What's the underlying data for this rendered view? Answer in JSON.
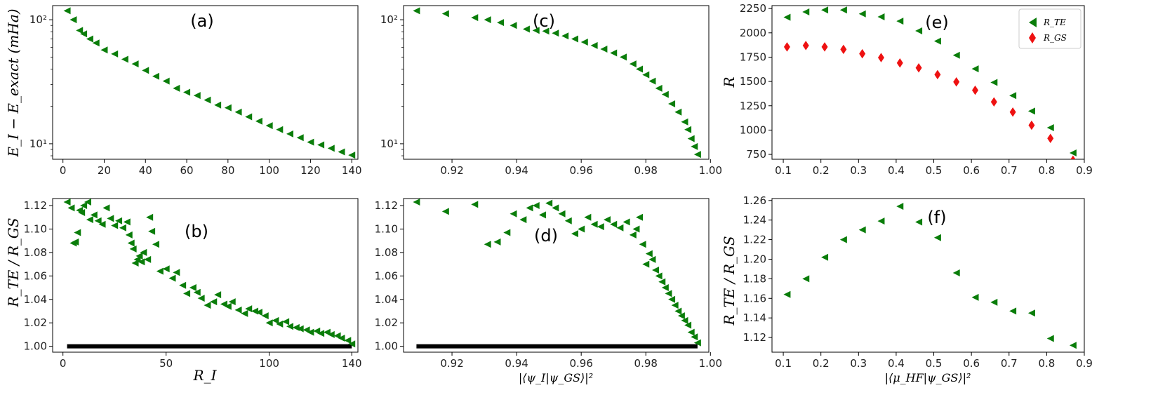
{
  "colors": {
    "green": "#0a7d0a",
    "red": "#ee1111",
    "black": "#000000"
  },
  "chart_data": [
    {
      "id": "a",
      "type": "scatter",
      "marker": "triangle-left",
      "panel_label": "(a)",
      "title": "",
      "xlabel": "",
      "ylabel": "E_I − E_exact (mHa)",
      "xscale": "linear",
      "yscale": "log",
      "xlim": [
        -5,
        143
      ],
      "ylim": [
        7.5,
        130
      ],
      "xticks": [
        0,
        20,
        40,
        60,
        80,
        100,
        120,
        140
      ],
      "xtick_labels": [
        "0",
        "20",
        "40",
        "60",
        "80",
        "100",
        "120",
        "140"
      ],
      "yticks": [
        10,
        100
      ],
      "ytick_labels": [
        "10¹",
        "10²"
      ],
      "series": [
        {
          "name": "E_I",
          "color": "#0a7d0a",
          "x": [
            2,
            5,
            8,
            10,
            13,
            16,
            20,
            25,
            30,
            35,
            40,
            45,
            50,
            55,
            60,
            65,
            70,
            75,
            80,
            85,
            90,
            95,
            100,
            105,
            110,
            115,
            120,
            125,
            130,
            135,
            140
          ],
          "y": [
            118,
            100,
            82,
            77,
            70,
            65,
            57,
            53,
            48,
            44,
            39,
            35,
            32,
            28,
            26,
            24.5,
            22.5,
            20.5,
            19.5,
            18,
            16.5,
            15.2,
            14,
            13,
            12,
            11.2,
            10.3,
            9.8,
            9.2,
            8.6,
            8.1
          ]
        }
      ]
    },
    {
      "id": "b",
      "type": "scatter",
      "marker": "triangle-left",
      "panel_label": "(b)",
      "title": "",
      "xlabel": "R_I",
      "ylabel": "R_TE / R_GS",
      "xscale": "linear",
      "yscale": "linear",
      "xlim": [
        -5,
        143
      ],
      "ylim": [
        0.995,
        1.126
      ],
      "xticks": [
        0,
        50,
        100,
        140
      ],
      "xtick_labels": [
        "0",
        "50",
        "100",
        "140"
      ],
      "yticks": [
        1.0,
        1.02,
        1.04,
        1.06,
        1.08,
        1.1,
        1.12
      ],
      "ytick_labels": [
        "1.00",
        "1.02",
        "1.04",
        "1.06",
        "1.08",
        "1.10",
        "1.12"
      ],
      "reference_line": {
        "y": 1.0,
        "x_from": 2,
        "x_to": 140,
        "color": "#000000"
      },
      "series": [
        {
          "name": "ratio",
          "color": "#0a7d0a",
          "x": [
            2,
            4,
            5,
            6,
            7,
            8,
            9,
            10,
            12,
            13,
            15,
            17,
            19,
            21,
            23,
            25,
            27,
            29,
            31,
            32,
            33,
            34,
            35,
            36,
            37,
            38,
            39,
            41,
            42,
            43,
            45,
            47,
            50,
            53,
            55,
            58,
            60,
            63,
            65,
            67,
            70,
            73,
            75,
            78,
            80,
            82,
            85,
            88,
            90,
            93,
            95,
            98,
            100,
            103,
            105,
            108,
            110,
            113,
            115,
            118,
            120,
            123,
            125,
            128,
            130,
            133,
            135,
            138,
            140
          ],
          "y": [
            1.123,
            1.118,
            1.088,
            1.089,
            1.097,
            1.116,
            1.114,
            1.12,
            1.123,
            1.108,
            1.112,
            1.107,
            1.104,
            1.118,
            1.109,
            1.103,
            1.107,
            1.101,
            1.106,
            1.095,
            1.088,
            1.083,
            1.071,
            1.074,
            1.077,
            1.072,
            1.08,
            1.074,
            1.11,
            1.098,
            1.087,
            1.064,
            1.066,
            1.058,
            1.063,
            1.052,
            1.045,
            1.05,
            1.046,
            1.041,
            1.035,
            1.038,
            1.044,
            1.036,
            1.034,
            1.038,
            1.031,
            1.028,
            1.032,
            1.03,
            1.029,
            1.026,
            1.02,
            1.022,
            1.019,
            1.021,
            1.017,
            1.016,
            1.015,
            1.014,
            1.012,
            1.013,
            1.011,
            1.012,
            1.01,
            1.009,
            1.007,
            1.005,
            1.002
          ]
        }
      ]
    },
    {
      "id": "c",
      "type": "scatter",
      "marker": "triangle-left",
      "panel_label": "(c)",
      "title": "",
      "xlabel": "",
      "ylabel": "",
      "xscale": "linear",
      "yscale": "log",
      "xlim": [
        0.905,
        0.9995
      ],
      "ylim": [
        7.5,
        130
      ],
      "xticks": [
        0.92,
        0.94,
        0.96,
        0.98,
        1.0
      ],
      "xtick_labels": [
        "0.92",
        "0.94",
        "0.96",
        "0.98",
        "1.00"
      ],
      "yticks": [
        10,
        100
      ],
      "ytick_labels": [
        "10¹",
        "10²"
      ],
      "series": [
        {
          "name": "E_I",
          "color": "#0a7d0a",
          "x": [
            0.909,
            0.918,
            0.927,
            0.931,
            0.935,
            0.939,
            0.943,
            0.946,
            0.949,
            0.952,
            0.955,
            0.958,
            0.961,
            0.964,
            0.967,
            0.97,
            0.973,
            0.976,
            0.978,
            0.98,
            0.982,
            0.984,
            0.986,
            0.988,
            0.99,
            0.992,
            0.993,
            0.994,
            0.995,
            0.996
          ],
          "y": [
            118,
            112,
            104,
            100,
            95,
            90,
            84,
            82,
            81,
            78,
            74,
            70,
            66,
            62,
            58,
            54,
            50,
            44,
            40,
            36,
            32,
            28,
            25,
            21,
            18,
            15,
            13,
            11,
            9.5,
            8.2
          ]
        }
      ]
    },
    {
      "id": "d",
      "type": "scatter",
      "marker": "triangle-left",
      "panel_label": "(d)",
      "title": "",
      "xlabel": "|⟨ψ_I|ψ_GS⟩|²",
      "ylabel": "",
      "xscale": "linear",
      "yscale": "linear",
      "xlim": [
        0.905,
        0.9995
      ],
      "ylim": [
        0.995,
        1.126
      ],
      "xticks": [
        0.92,
        0.94,
        0.96,
        0.98,
        1.0
      ],
      "xtick_labels": [
        "0.92",
        "0.94",
        "0.96",
        "0.98",
        "1.00"
      ],
      "yticks": [
        1.0,
        1.02,
        1.04,
        1.06,
        1.08,
        1.1,
        1.12
      ],
      "ytick_labels": [
        "1.00",
        "1.02",
        "1.04",
        "1.06",
        "1.08",
        "1.10",
        "1.12"
      ],
      "reference_line": {
        "y": 1.0,
        "x_from": 0.909,
        "x_to": 0.996,
        "color": "#000000"
      },
      "series": [
        {
          "name": "ratio",
          "color": "#0a7d0a",
          "x": [
            0.909,
            0.918,
            0.927,
            0.931,
            0.934,
            0.937,
            0.939,
            0.942,
            0.944,
            0.946,
            0.948,
            0.95,
            0.952,
            0.954,
            0.956,
            0.958,
            0.96,
            0.962,
            0.964,
            0.966,
            0.968,
            0.97,
            0.972,
            0.974,
            0.976,
            0.977,
            0.978,
            0.979,
            0.98,
            0.981,
            0.982,
            0.983,
            0.984,
            0.985,
            0.986,
            0.987,
            0.988,
            0.989,
            0.99,
            0.991,
            0.992,
            0.993,
            0.994,
            0.995,
            0.996
          ],
          "y": [
            1.123,
            1.115,
            1.121,
            1.087,
            1.089,
            1.097,
            1.113,
            1.108,
            1.118,
            1.12,
            1.112,
            1.122,
            1.118,
            1.113,
            1.107,
            1.096,
            1.1,
            1.11,
            1.104,
            1.102,
            1.108,
            1.104,
            1.101,
            1.106,
            1.095,
            1.1,
            1.11,
            1.087,
            1.07,
            1.079,
            1.074,
            1.065,
            1.06,
            1.055,
            1.05,
            1.045,
            1.04,
            1.035,
            1.03,
            1.026,
            1.022,
            1.018,
            1.012,
            1.008,
            1.003
          ]
        }
      ]
    },
    {
      "id": "e",
      "type": "scatter",
      "panel_label": "(e)",
      "title": "",
      "xlabel": "",
      "ylabel": "R",
      "xscale": "linear",
      "yscale": "linear",
      "xlim": [
        0.07,
        0.9
      ],
      "ylim": [
        700,
        2280
      ],
      "xticks": [
        0.1,
        0.2,
        0.3,
        0.4,
        0.5,
        0.6,
        0.7,
        0.8,
        0.9
      ],
      "xtick_labels": [
        "0.1",
        "0.2",
        "0.3",
        "0.4",
        "0.5",
        "0.6",
        "0.7",
        "0.8",
        "0.9"
      ],
      "yticks": [
        750,
        1000,
        1250,
        1500,
        1750,
        2000,
        2250
      ],
      "ytick_labels": [
        "750",
        "1000",
        "1250",
        "1500",
        "1750",
        "2000",
        "2250"
      ],
      "legend": {
        "placement": "top-right",
        "entries": [
          "R_TE",
          "R_GS"
        ]
      },
      "series": [
        {
          "name": "R_TE",
          "marker": "triangle-left",
          "color": "#0a7d0a",
          "x": [
            0.11,
            0.16,
            0.21,
            0.26,
            0.31,
            0.36,
            0.41,
            0.46,
            0.51,
            0.56,
            0.61,
            0.66,
            0.71,
            0.76,
            0.81,
            0.87
          ],
          "y": [
            2160,
            2215,
            2235,
            2235,
            2195,
            2165,
            2120,
            2020,
            1915,
            1770,
            1630,
            1490,
            1355,
            1195,
            1025,
            765
          ]
        },
        {
          "name": "R_GS",
          "marker": "diamond",
          "color": "#ee1111",
          "x": [
            0.11,
            0.16,
            0.21,
            0.26,
            0.31,
            0.36,
            0.41,
            0.46,
            0.51,
            0.56,
            0.61,
            0.66,
            0.71,
            0.76,
            0.81,
            0.87
          ],
          "y": [
            1855,
            1870,
            1855,
            1830,
            1785,
            1745,
            1690,
            1640,
            1570,
            1495,
            1410,
            1290,
            1185,
            1050,
            915,
            690
          ]
        }
      ]
    },
    {
      "id": "f",
      "type": "scatter",
      "marker": "triangle-left",
      "panel_label": "(f)",
      "title": "",
      "xlabel": "|⟨μ_HF|ψ_GS⟩|²",
      "ylabel": "R_TE / R_GS",
      "xscale": "linear",
      "yscale": "linear",
      "xlim": [
        0.07,
        0.9
      ],
      "ylim": [
        1.105,
        1.262
      ],
      "xticks": [
        0.1,
        0.2,
        0.3,
        0.4,
        0.5,
        0.6,
        0.7,
        0.8,
        0.9
      ],
      "xtick_labels": [
        "0.1",
        "0.2",
        "0.3",
        "0.4",
        "0.5",
        "0.6",
        "0.7",
        "0.8",
        "0.9"
      ],
      "yticks": [
        1.12,
        1.14,
        1.16,
        1.18,
        1.2,
        1.22,
        1.24,
        1.26
      ],
      "ytick_labels": [
        "1.12",
        "1.14",
        "1.16",
        "1.18",
        "1.20",
        "1.22",
        "1.24",
        "1.26"
      ],
      "series": [
        {
          "name": "ratio",
          "color": "#0a7d0a",
          "x": [
            0.11,
            0.16,
            0.21,
            0.26,
            0.31,
            0.36,
            0.41,
            0.46,
            0.51,
            0.56,
            0.61,
            0.66,
            0.71,
            0.76,
            0.81,
            0.87
          ],
          "y": [
            1.164,
            1.18,
            1.202,
            1.22,
            1.23,
            1.239,
            1.254,
            1.238,
            1.222,
            1.186,
            1.161,
            1.156,
            1.147,
            1.145,
            1.119,
            1.112
          ]
        }
      ]
    }
  ]
}
